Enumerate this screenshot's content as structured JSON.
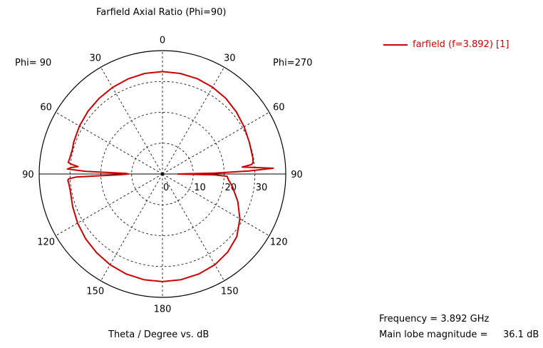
{
  "chart_data": {
    "type": "polar-line",
    "title": "Farfield  Axial Ratio (Phi=90)",
    "xlabel": "Theta / Degree vs. dB",
    "phi_left_label": "Phi= 90",
    "phi_right_label": "Phi=270",
    "theta_tick_labels": [
      "0",
      "30",
      "60",
      "90",
      "120",
      "150",
      "180",
      "150",
      "120",
      "90",
      "60",
      "30"
    ],
    "theta_tick_angles": [
      0,
      30,
      60,
      90,
      120,
      150,
      180,
      210,
      240,
      270,
      300,
      330
    ],
    "radial_range": [
      0,
      40
    ],
    "radial_ticks": [
      0,
      10,
      20,
      30
    ],
    "radial_tick_labels": [
      "0",
      "10",
      "20",
      "30"
    ],
    "grid": true,
    "legend": {
      "position": "top-right",
      "entries": [
        "farfield (f=3.892) [1]"
      ]
    },
    "series": [
      {
        "name": "farfield (f=3.892) [1]",
        "color": "#cc0000",
        "theta": [
          0,
          10,
          20,
          30,
          40,
          50,
          60,
          70,
          75,
          80,
          83,
          84,
          85,
          86,
          87,
          88,
          89,
          90,
          91,
          92,
          93,
          94,
          95,
          100,
          110,
          120,
          130,
          140,
          150,
          160,
          170,
          180,
          190,
          200,
          210,
          220,
          230,
          240,
          250,
          260,
          265,
          268,
          269,
          270,
          271,
          272,
          273,
          274,
          275,
          276,
          277,
          280,
          290,
          300,
          310,
          320,
          330,
          340,
          350,
          360
        ],
        "values": [
          33.2,
          33.1,
          32.8,
          32.4,
          32.0,
          31.6,
          31.1,
          30.6,
          30.3,
          30.5,
          30.8,
          29.5,
          27.5,
          29.8,
          30.9,
          25.0,
          12.0,
          11.0,
          14.0,
          28.0,
          30.5,
          30.8,
          30.6,
          30.4,
          31.0,
          31.8,
          32.6,
          33.3,
          34.0,
          34.5,
          34.8,
          34.9,
          34.8,
          34.5,
          34.0,
          33.0,
          31.5,
          29.0,
          26.0,
          23.0,
          21.5,
          21.0,
          17.0,
          5.0,
          17.0,
          28.0,
          36.0,
          30.0,
          26.0,
          29.0,
          29.6,
          29.8,
          30.0,
          30.6,
          31.3,
          32.0,
          32.5,
          32.9,
          33.1,
          33.2
        ]
      }
    ]
  },
  "info": {
    "frequency_line": "Frequency = 3.892 GHz",
    "main_lobe_label": "Main lobe magnitude =",
    "main_lobe_value": "36.1 dB"
  }
}
